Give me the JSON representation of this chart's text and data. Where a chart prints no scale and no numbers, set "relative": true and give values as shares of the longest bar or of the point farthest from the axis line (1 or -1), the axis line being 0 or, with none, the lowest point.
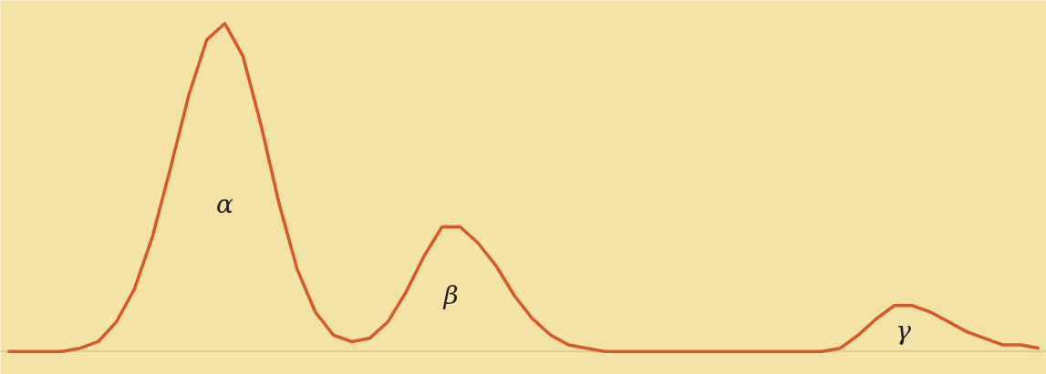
{
  "chart_data": {
    "type": "line",
    "relative": true,
    "categories": [
      null,
      null,
      null,
      null,
      null,
      null,
      null,
      null,
      null,
      null,
      null,
      null,
      null,
      null,
      null,
      null,
      null,
      null,
      null,
      null,
      null,
      null,
      null,
      null,
      null,
      null,
      null,
      null,
      null,
      null,
      null,
      null,
      null,
      null,
      null,
      null,
      null,
      null,
      null,
      null,
      null,
      null,
      null,
      null,
      null,
      null,
      null,
      null,
      null,
      null,
      null,
      null,
      null,
      null,
      null,
      null,
      null,
      null
    ],
    "series": [
      {
        "color": "#d9582b",
        "values": [
          0,
          0,
          0,
          0,
          0.01,
          0.03,
          0.09,
          0.19,
          0.35,
          0.56,
          0.78,
          0.95,
          1,
          0.9,
          0.69,
          0.45,
          0.25,
          0.12,
          0.05,
          0.03,
          0.04,
          0.09,
          0.18,
          0.29,
          0.38,
          0.38,
          0.33,
          0.26,
          0.17,
          0.1,
          0.05,
          0.02,
          0.01,
          0,
          0,
          0,
          0,
          0,
          0,
          0,
          0,
          0,
          0,
          0,
          0,
          0,
          0.01,
          0.05,
          0.1,
          0.14,
          0.14,
          0.12,
          0.09,
          0.06,
          0.04,
          0.02,
          0.02,
          0.01
        ]
      }
    ],
    "annotations": [
      "α",
      "β",
      "γ"
    ],
    "grid": false,
    "marker": "none",
    "line_style": "solid"
  }
}
